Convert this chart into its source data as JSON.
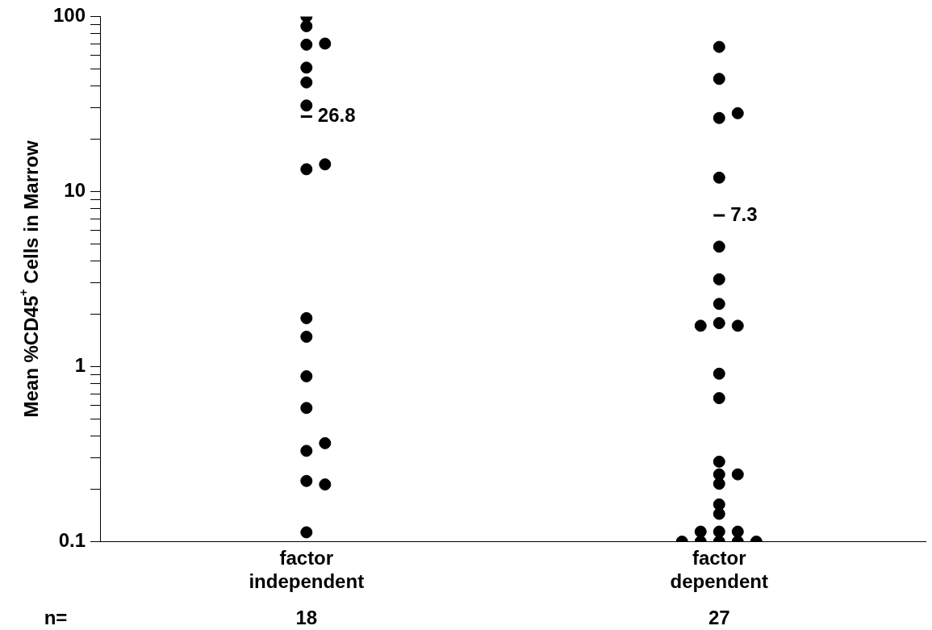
{
  "chart_data": {
    "type": "scatter",
    "ylabel": "Mean %CD45$^{+}$ Cells in Marrow",
    "categories": [
      "factor independent",
      "factor dependent"
    ],
    "series": [
      {
        "color": "#000000",
        "x": [
          "factor independent",
          "factor independent",
          "factor independent",
          "factor independent",
          "factor independent",
          "factor independent",
          "factor independent",
          "factor independent",
          "factor independent",
          "factor independent",
          "factor independent",
          "factor independent",
          "factor independent",
          "factor independent",
          "factor independent",
          "factor independent",
          "factor independent",
          "factor independent"
        ],
        "values": [
          100,
          88,
          69,
          70,
          51,
          42,
          31,
          13.4,
          14.3,
          1.89,
          1.48,
          0.88,
          0.58,
          0.33,
          0.365,
          0.222,
          0.212,
          0.113
        ]
      },
      {
        "color": "#000000",
        "x": [
          "factor dependent",
          "factor dependent",
          "factor dependent",
          "factor dependent",
          "factor dependent",
          "factor dependent",
          "factor dependent",
          "factor dependent",
          "factor dependent",
          "factor dependent",
          "factor dependent",
          "factor dependent",
          "factor dependent",
          "factor dependent",
          "factor dependent",
          "factor dependent",
          "factor dependent",
          "factor dependent",
          "factor dependent",
          "factor dependent",
          "factor dependent",
          "factor dependent",
          "factor dependent",
          "factor dependent",
          "factor dependent",
          "factor dependent",
          "factor dependent"
        ],
        "values": [
          67,
          44,
          26.3,
          28,
          12,
          4.84,
          3.15,
          2.28,
          1.77,
          1.71,
          1.71,
          0.91,
          0.66,
          0.286,
          0.242,
          0.242,
          0.214,
          0.163,
          0.144,
          0.1,
          0.114,
          0.1,
          0.114,
          0.1,
          0.114,
          0.1,
          0.1
        ]
      }
    ],
    "log": "y",
    "ylim": [
      0.1,
      100
    ],
    "yticks": [
      {
        "value": 0.1,
        "label": "0.1"
      },
      {
        "value": 0.2,
        "label": null
      },
      {
        "value": 0.3,
        "label": null
      },
      {
        "value": 0.4,
        "label": null
      },
      {
        "value": 0.5,
        "label": null
      },
      {
        "value": 0.6,
        "label": null
      },
      {
        "value": 0.7,
        "label": null
      },
      {
        "value": 0.8,
        "label": null
      },
      {
        "value": 0.9,
        "label": null
      },
      1,
      {
        "value": 2,
        "label": null
      },
      {
        "value": 3,
        "label": null
      },
      {
        "value": 4,
        "label": null
      },
      {
        "value": 5,
        "label": null
      },
      {
        "value": 6,
        "label": null
      },
      {
        "value": 7,
        "label": null
      },
      {
        "value": 8,
        "label": null
      },
      {
        "value": 9,
        "label": null
      },
      10,
      {
        "value": 20,
        "label": null
      },
      {
        "value": 30,
        "label": null
      },
      {
        "value": 40,
        "label": null
      },
      {
        "value": 50,
        "label": null
      },
      {
        "value": 60,
        "label": null
      },
      {
        "value": 70,
        "label": null
      },
      {
        "value": 80,
        "label": null
      },
      {
        "value": 90,
        "label": null
      },
      100
    ],
    "marker": "circle",
    "grid": false,
    "legend": false,
    "annotations": [
      "n=",
      "18",
      "27"
    ],
    "ref_lines": [
      {
        "axis": "y",
        "value": 26.8,
        "label": "26.8",
        "color": "#000000"
      },
      {
        "axis": "y",
        "value": 7.3,
        "label": "7.3",
        "color": "#000000"
      }
    ]
  }
}
